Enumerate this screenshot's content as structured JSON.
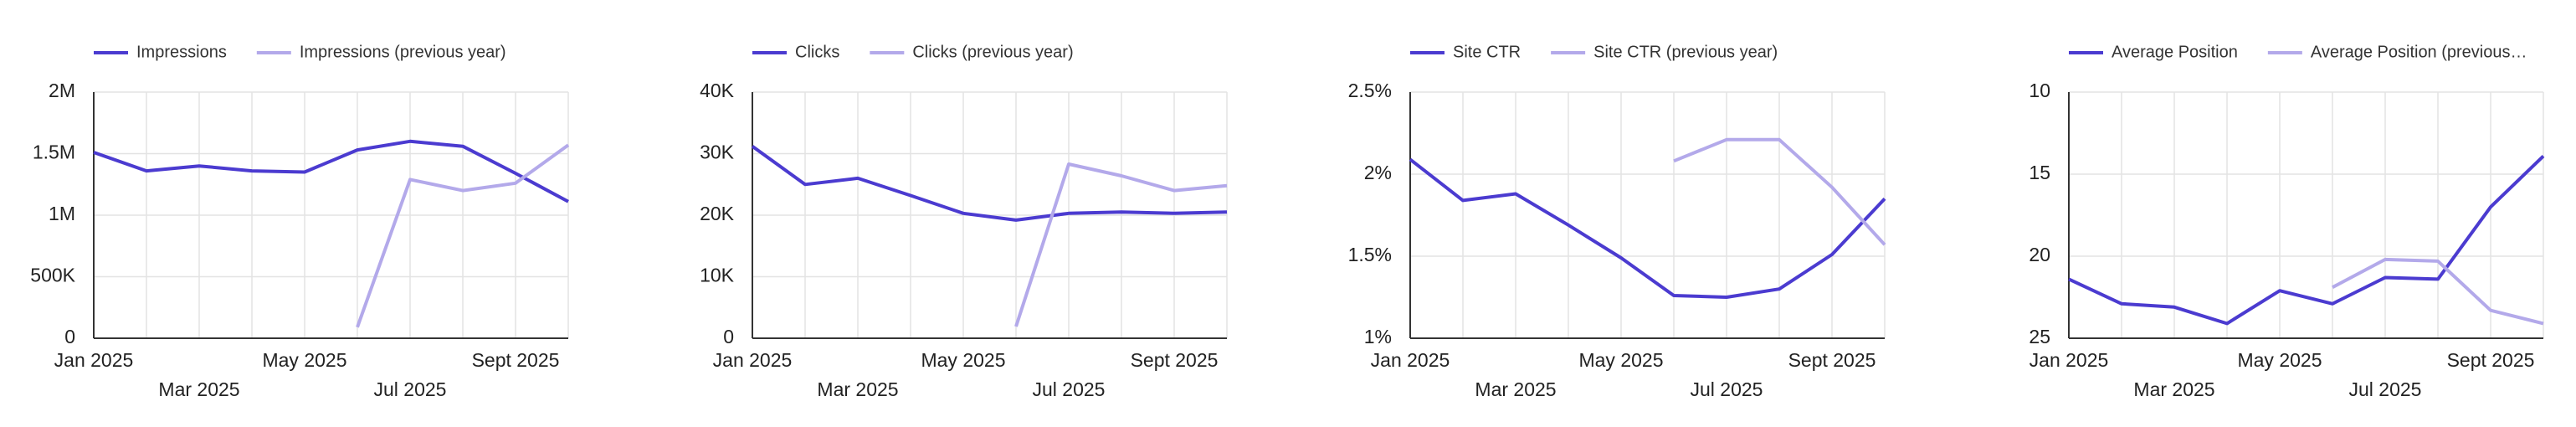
{
  "chart_data": [
    {
      "type": "line",
      "categories": [
        "Jan 2025",
        null,
        "Mar 2025",
        null,
        "May 2025",
        null,
        "Jul 2025",
        null,
        "Sept 2025",
        null
      ],
      "series": [
        {
          "name": "Impressions",
          "color": "#4b3bd0",
          "values": [
            1510000,
            1360000,
            1400000,
            1360000,
            1350000,
            1530000,
            1600000,
            1560000,
            1340000,
            1110000
          ]
        },
        {
          "name": "Impressions (previous year)",
          "color": "#b3a9ea",
          "values": [
            null,
            null,
            null,
            null,
            null,
            90000,
            1290000,
            1200000,
            1260000,
            1570000
          ]
        }
      ],
      "ylim": [
        0,
        2000000
      ],
      "yticks": [
        0,
        {
          "value": 500000,
          "label": "500K"
        },
        {
          "value": 1000000,
          "label": "1M"
        },
        {
          "value": 1500000,
          "label": "1.5M"
        },
        {
          "value": 2000000,
          "label": "2M"
        }
      ],
      "grid": true
    },
    {
      "type": "line",
      "categories": [
        "Jan 2025",
        null,
        "Mar 2025",
        null,
        "May 2025",
        null,
        "Jul 2025",
        null,
        "Sept 2025",
        null
      ],
      "series": [
        {
          "name": "Clicks",
          "color": "#4b3bd0",
          "values": [
            31200,
            25000,
            26000,
            23200,
            20300,
            19200,
            20300,
            20500,
            20300,
            20500
          ]
        },
        {
          "name": "Clicks (previous year)",
          "color": "#b3a9ea",
          "values": [
            null,
            null,
            null,
            null,
            null,
            1900,
            28300,
            26400,
            24000,
            24800
          ]
        }
      ],
      "ylim": [
        0,
        40000
      ],
      "yticks": [
        0,
        {
          "value": 10000,
          "label": "10K"
        },
        {
          "value": 20000,
          "label": "20K"
        },
        {
          "value": 30000,
          "label": "30K"
        },
        {
          "value": 40000,
          "label": "40K"
        }
      ],
      "grid": true
    },
    {
      "type": "line",
      "categories": [
        "Jan 2025",
        null,
        "Mar 2025",
        null,
        "May 2025",
        null,
        "Jul 2025",
        null,
        "Sept 2025",
        null
      ],
      "series": [
        {
          "name": "Site CTR",
          "color": "#4b3bd0",
          "values": [
            2.09,
            1.84,
            1.88,
            1.69,
            1.49,
            1.26,
            1.25,
            1.3,
            1.51,
            1.85
          ]
        },
        {
          "name": "Site CTR (previous year)",
          "color": "#b3a9ea",
          "values": [
            null,
            null,
            null,
            null,
            null,
            2.08,
            2.21,
            2.21,
            1.92,
            1.57
          ]
        }
      ],
      "ylim": [
        1,
        2.5
      ],
      "yticks": [
        {
          "value": 1,
          "label": "1%"
        },
        {
          "value": 1.5,
          "label": "1.5%"
        },
        {
          "value": 2,
          "label": "2%"
        },
        {
          "value": 2.5,
          "label": "2.5%"
        }
      ],
      "grid": true
    },
    {
      "type": "line",
      "categories": [
        "Jan 2025",
        null,
        "Mar 2025",
        null,
        "May 2025",
        null,
        "Jul 2025",
        null,
        "Sept 2025",
        null
      ],
      "series": [
        {
          "name": "Average Position",
          "color": "#4b3bd0",
          "values": [
            21.4,
            22.9,
            23.1,
            24.1,
            22.1,
            22.9,
            21.3,
            21.4,
            17,
            13.9
          ]
        },
        {
          "name": "Average Position (previous…",
          "color": "#b3a9ea",
          "values": [
            null,
            null,
            null,
            null,
            null,
            21.9,
            20.2,
            20.3,
            23.3,
            24.1
          ]
        }
      ],
      "ylim": [
        10,
        25
      ],
      "y_inverted": true,
      "yticks": [
        10,
        15,
        20,
        25
      ],
      "grid": true
    }
  ]
}
